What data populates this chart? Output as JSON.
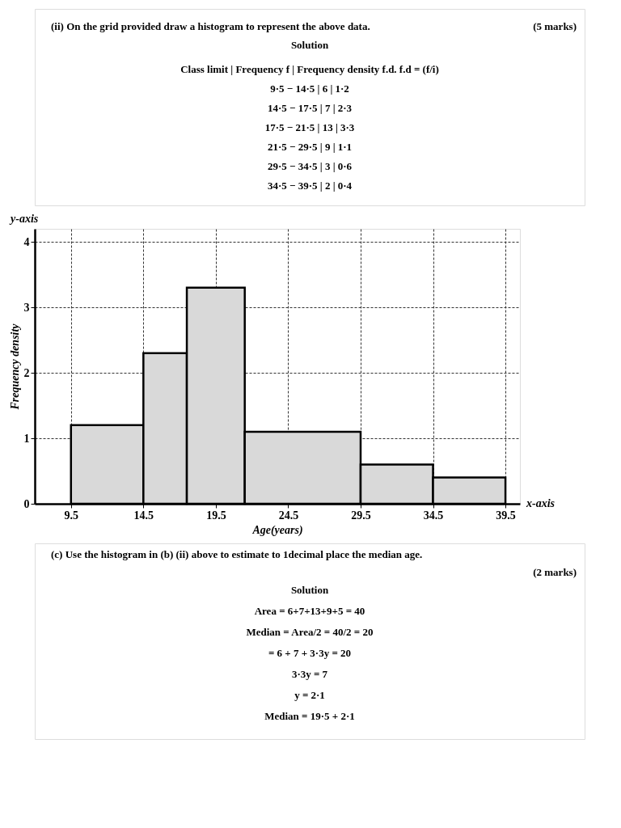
{
  "chart_data": {
    "type": "histogram",
    "title": "(ii) On the grid provided draw a histogram to represent the above data.",
    "xlabel": "Age(years)",
    "ylabel": "Frequency density",
    "bins": [
      9.5,
      14.5,
      17.5,
      21.5,
      29.5,
      34.5,
      39.5
    ],
    "values": [
      1.2,
      2.3,
      3.3,
      1.1,
      0.6,
      0.4
    ],
    "color": "#d9d9d9",
    "xlim": [
      7,
      40.5
    ],
    "xticks": [
      9.5,
      14.5,
      19.5,
      24.5,
      29.5,
      34.5,
      39.5
    ],
    "ylim": [
      0,
      4.2
    ],
    "yticks": [
      0,
      1,
      2,
      3,
      4
    ],
    "grid": true,
    "annotations": [
      "(5 marks)",
      "Solution",
      "Class limit   |   Frequency f   |   Frequency density f.d. f.d = (f/i)",
      "9·5 − 14·5   |   6   |   1·2",
      "14·5 − 17·5   |   7   |   2·3",
      "17·5 − 21·5   |   13   |   3·3",
      "21·5 − 29·5   |   9   |   1·1",
      "29·5 − 34·5   |   3   |   0·6",
      "34·5 − 39·5   |   2   |   0·4",
      "y-axis",
      "x-axis",
      "(c) Use the histogram in (b) (ii) above to estimate to 1decimal place the median age.",
      "(2 marks)",
      "Solution",
      "Area = 6+7+13+9+5 = 40",
      "Median = Area/2 = 40/2 = 20",
      "= 6 + 7 + 3·3y = 20",
      "3·3y = 7",
      "y = 2·1",
      "Median = 19·5 + 2·1"
    ]
  }
}
